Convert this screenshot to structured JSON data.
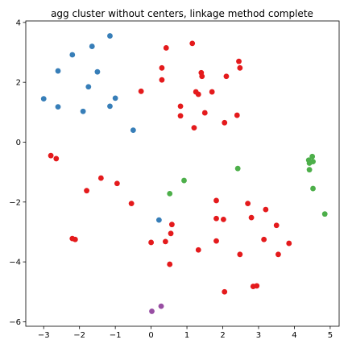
{
  "chart_data": {
    "type": "scatter",
    "title": "agg cluster without centers, linkage method complete",
    "xlabel": "",
    "ylabel": "",
    "xlim": [
      -3.5,
      5.25
    ],
    "ylim": [
      -6.15,
      4.05
    ],
    "xticks": [
      -3,
      -2,
      -1,
      0,
      1,
      2,
      3,
      4,
      5
    ],
    "yticks": [
      -6,
      -4,
      -2,
      0,
      2,
      4
    ],
    "grid": false,
    "series": [
      {
        "color": "#377eb8",
        "points": [
          [
            -1.15,
            3.55
          ],
          [
            -1.65,
            3.2
          ],
          [
            -2.2,
            2.92
          ],
          [
            -2.6,
            2.38
          ],
          [
            -1.5,
            2.35
          ],
          [
            -1.75,
            1.85
          ],
          [
            -3.0,
            1.45
          ],
          [
            -1.0,
            1.47
          ],
          [
            -2.6,
            1.18
          ],
          [
            -1.15,
            1.2
          ],
          [
            -1.9,
            1.03
          ],
          [
            -0.5,
            0.4
          ],
          [
            0.22,
            -2.6
          ]
        ]
      },
      {
        "color": "#e41a1c",
        "points": [
          [
            0.42,
            3.15
          ],
          [
            1.15,
            3.3
          ],
          [
            2.45,
            2.7
          ],
          [
            0.3,
            2.48
          ],
          [
            2.48,
            2.48
          ],
          [
            1.4,
            2.32
          ],
          [
            1.42,
            2.2
          ],
          [
            2.1,
            2.2
          ],
          [
            0.3,
            2.08
          ],
          [
            1.25,
            1.68
          ],
          [
            1.32,
            1.6
          ],
          [
            1.7,
            1.68
          ],
          [
            -0.28,
            1.7
          ],
          [
            0.82,
            1.2
          ],
          [
            1.5,
            0.98
          ],
          [
            0.82,
            0.88
          ],
          [
            2.4,
            0.9
          ],
          [
            2.05,
            0.65
          ],
          [
            1.2,
            0.48
          ],
          [
            -2.8,
            -0.45
          ],
          [
            -2.65,
            -0.55
          ],
          [
            -1.4,
            -1.2
          ],
          [
            -0.95,
            -1.38
          ],
          [
            -1.8,
            -1.62
          ],
          [
            -0.55,
            -2.05
          ],
          [
            1.82,
            -1.95
          ],
          [
            2.7,
            -2.05
          ],
          [
            3.2,
            -2.25
          ],
          [
            0.58,
            -2.75
          ],
          [
            1.82,
            -2.55
          ],
          [
            2.02,
            -2.58
          ],
          [
            2.8,
            -2.52
          ],
          [
            3.5,
            -2.78
          ],
          [
            0.55,
            -3.05
          ],
          [
            -2.2,
            -3.22
          ],
          [
            -2.12,
            -3.25
          ],
          [
            0.4,
            -3.32
          ],
          [
            0.0,
            -3.35
          ],
          [
            1.82,
            -3.3
          ],
          [
            3.15,
            -3.25
          ],
          [
            3.85,
            -3.38
          ],
          [
            1.32,
            -3.6
          ],
          [
            2.48,
            -3.75
          ],
          [
            3.55,
            -3.75
          ],
          [
            0.52,
            -4.08
          ],
          [
            2.85,
            -4.82
          ],
          [
            2.95,
            -4.8
          ],
          [
            2.05,
            -5.0
          ]
        ]
      },
      {
        "color": "#4daf4a",
        "points": [
          [
            0.92,
            -1.28
          ],
          [
            0.52,
            -1.72
          ],
          [
            2.42,
            -0.88
          ],
          [
            4.4,
            -0.6
          ],
          [
            4.5,
            -0.48
          ],
          [
            4.42,
            -0.7
          ],
          [
            4.52,
            -0.65
          ],
          [
            4.42,
            -0.92
          ],
          [
            4.52,
            -1.55
          ],
          [
            4.85,
            -2.4
          ]
        ]
      },
      {
        "color": "#984ea3",
        "points": [
          [
            0.28,
            -5.48
          ],
          [
            0.02,
            -5.65
          ]
        ]
      }
    ]
  }
}
